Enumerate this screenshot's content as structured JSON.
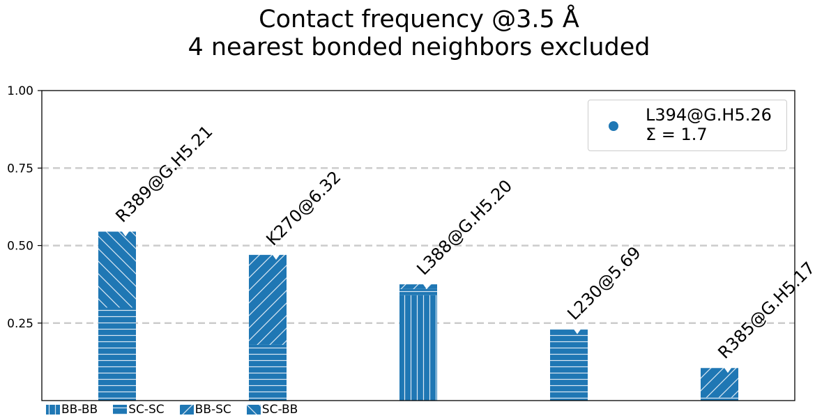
{
  "title": {
    "line1": "Contact frequency @3.5 Å",
    "line2": "4 nearest bonded neighbors excluded"
  },
  "legend": {
    "label": "L394@G.H5.26",
    "sum": "Σ = 1.7",
    "marker_color": "#1f77b4"
  },
  "hatch_legend": [
    {
      "label": "BB-BB",
      "pattern": "vertical"
    },
    {
      "label": "SC-SC",
      "pattern": "horizontal"
    },
    {
      "label": "BB-SC",
      "pattern": "diagonal-forward"
    },
    {
      "label": "SC-BB",
      "pattern": "diagonal-back"
    }
  ],
  "chart_data": {
    "type": "bar",
    "stacked": true,
    "categories": [
      "R389@G.H5.21",
      "K270@6.32",
      "L388@G.H5.20",
      "L230@5.69",
      "R385@G.H5.17"
    ],
    "series": [
      {
        "name": "BB-BB",
        "values": [
          0.0,
          0.0,
          0.34,
          0.0,
          0.0
        ]
      },
      {
        "name": "SC-SC",
        "values": [
          0.3,
          0.18,
          0.02,
          0.23,
          0.01
        ]
      },
      {
        "name": "BB-SC",
        "values": [
          0.0,
          0.29,
          0.015,
          0.0,
          0.095
        ]
      },
      {
        "name": "SC-BB",
        "values": [
          0.245,
          0.0,
          0.0,
          0.0,
          0.0
        ]
      }
    ],
    "totals": [
      0.545,
      0.47,
      0.375,
      0.23,
      0.105
    ],
    "ylim": [
      0,
      1.0
    ],
    "yticks": [
      "0.25",
      "0.50",
      "0.75",
      "1.00"
    ],
    "ytick_values": [
      0.25,
      0.5,
      0.75,
      1.0
    ],
    "grid": "horizontal-dashed",
    "bar_color": "#1f77b4",
    "legend_position": "top-right"
  }
}
